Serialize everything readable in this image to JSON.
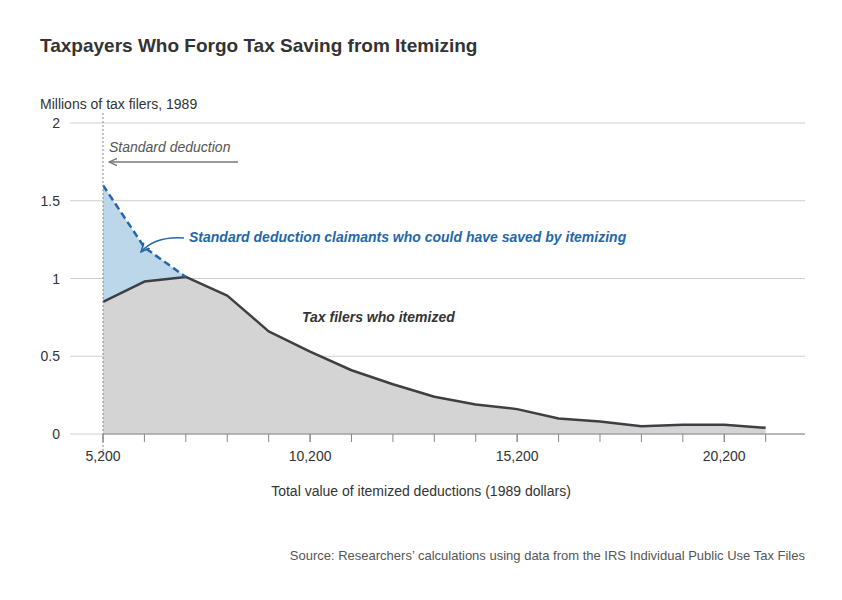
{
  "chart_data": {
    "type": "area",
    "title": "Taxpayers Who Forgo Tax Saving from Itemizing",
    "y_label": "Millions of tax filers, 1989",
    "x_label": "Total value of itemized deductions (1989 dollars)",
    "source": "Source: Researchers’ calculations using data from the IRS Individual Public Use Tax Files",
    "reference_line": {
      "x": 5200,
      "label": "Standard deduction"
    },
    "x": [
      5200,
      6200,
      7200,
      8200,
      9200,
      10200,
      11200,
      12200,
      13200,
      14200,
      15200,
      16200,
      17200,
      18200,
      19200,
      20200,
      21200
    ],
    "series": [
      {
        "name": "Tax filers who itemized",
        "color": "#3d3f42",
        "values": [
          0.85,
          0.98,
          1.01,
          0.89,
          0.66,
          0.53,
          0.41,
          0.32,
          0.24,
          0.19,
          0.16,
          0.1,
          0.08,
          0.05,
          0.06,
          0.06,
          0.04
        ]
      },
      {
        "name": "Standard deduction claimants who could have saved by itemizing",
        "color": "#2467a8",
        "line_style": "dashed",
        "values": [
          1.6,
          1.2,
          1.01,
          null,
          null,
          null,
          null,
          null,
          null,
          null,
          null,
          null,
          null,
          null,
          null,
          null,
          null
        ]
      }
    ],
    "xlim": [
      5200,
      22150
    ],
    "xticks": [
      {
        "value": 5200,
        "label": "5,200"
      },
      {
        "value": 10200,
        "label": "10,200"
      },
      {
        "value": 15200,
        "label": "15,200"
      },
      {
        "value": 20200,
        "label": "20,200"
      }
    ],
    "ylim": [
      0,
      2
    ],
    "yticks": [
      0,
      0.5,
      1,
      1.5,
      2
    ],
    "grid": true
  }
}
